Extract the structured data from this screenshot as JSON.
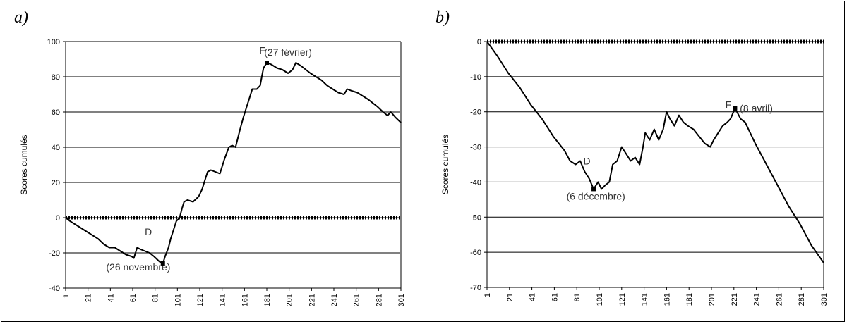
{
  "chart_data": [
    {
      "panel": "a)",
      "type": "line",
      "ylabel": "Scores cumulés",
      "xlabel": "",
      "ylim": [
        -40,
        100
      ],
      "yticks": [
        100,
        80,
        60,
        40,
        20,
        0,
        -20,
        -40
      ],
      "xlim": [
        1,
        301
      ],
      "xticks": [
        1,
        21,
        41,
        61,
        81,
        101,
        121,
        141,
        161,
        181,
        201,
        221,
        241,
        261,
        281,
        301
      ],
      "grid": "horizontal",
      "series": [
        {
          "points": [
            [
              1,
              0
            ],
            [
              5,
              -2
            ],
            [
              10,
              -4
            ],
            [
              15,
              -6
            ],
            [
              20,
              -8
            ],
            [
              25,
              -10
            ],
            [
              30,
              -12
            ],
            [
              35,
              -15
            ],
            [
              40,
              -17
            ],
            [
              45,
              -17
            ],
            [
              50,
              -19
            ],
            [
              55,
              -21
            ],
            [
              60,
              -22
            ],
            [
              62,
              -23
            ],
            [
              65,
              -17
            ],
            [
              68,
              -18
            ],
            [
              72,
              -19
            ],
            [
              76,
              -20
            ],
            [
              80,
              -22
            ],
            [
              85,
              -25
            ],
            [
              88,
              -26
            ],
            [
              90,
              -22
            ],
            [
              93,
              -17
            ],
            [
              95,
              -12
            ],
            [
              98,
              -6
            ],
            [
              100,
              -2
            ],
            [
              103,
              0
            ],
            [
              105,
              5
            ],
            [
              107,
              9
            ],
            [
              110,
              10
            ],
            [
              115,
              9
            ],
            [
              120,
              12
            ],
            [
              123,
              16
            ],
            [
              126,
              22
            ],
            [
              128,
              26
            ],
            [
              131,
              27
            ],
            [
              135,
              26
            ],
            [
              139,
              25
            ],
            [
              143,
              33
            ],
            [
              147,
              40
            ],
            [
              150,
              41
            ],
            [
              153,
              40
            ],
            [
              157,
              50
            ],
            [
              160,
              57
            ],
            [
              163,
              63
            ],
            [
              166,
              69
            ],
            [
              168,
              73
            ],
            [
              172,
              73
            ],
            [
              175,
              75
            ],
            [
              178,
              85
            ],
            [
              181,
              88
            ],
            [
              185,
              87
            ],
            [
              190,
              85
            ],
            [
              195,
              84
            ],
            [
              200,
              82
            ],
            [
              204,
              84
            ],
            [
              207,
              88
            ],
            [
              212,
              86
            ],
            [
              216,
              84
            ],
            [
              220,
              82
            ],
            [
              225,
              80
            ],
            [
              230,
              78
            ],
            [
              235,
              75
            ],
            [
              240,
              73
            ],
            [
              245,
              71
            ],
            [
              250,
              70
            ],
            [
              253,
              73
            ],
            [
              257,
              72
            ],
            [
              262,
              71
            ],
            [
              267,
              69
            ],
            [
              272,
              67
            ],
            [
              276,
              65
            ],
            [
              280,
              63
            ],
            [
              285,
              60
            ],
            [
              289,
              58
            ],
            [
              292,
              60
            ],
            [
              296,
              57
            ],
            [
              301,
              54
            ]
          ]
        },
        {
          "name": "baseline",
          "style": "dotted",
          "points": [
            [
              1,
              0
            ],
            [
              301,
              0
            ]
          ]
        }
      ],
      "annotations": [
        {
          "text": "D",
          "x": 75,
          "y": -10
        },
        {
          "text": "(26 novembre)",
          "x": 66,
          "y": -30
        },
        {
          "text": "F",
          "x": 177,
          "y": 93
        },
        {
          "text": "(27 février)",
          "x": 200,
          "y": 92
        }
      ],
      "marked_points": [
        [
          88,
          -26
        ],
        [
          181,
          88
        ]
      ]
    },
    {
      "panel": "b)",
      "type": "line",
      "ylabel": "Scores cumulés",
      "xlabel": "",
      "ylim": [
        -70,
        0
      ],
      "yticks": [
        0,
        -10,
        -20,
        -30,
        -40,
        -50,
        -60,
        -70
      ],
      "xlim": [
        1,
        301
      ],
      "xticks": [
        1,
        21,
        41,
        61,
        81,
        101,
        121,
        141,
        161,
        181,
        201,
        221,
        241,
        261,
        281,
        301
      ],
      "grid": "horizontal",
      "series": [
        {
          "points": [
            [
              1,
              0
            ],
            [
              10,
              -4
            ],
            [
              20,
              -9
            ],
            [
              30,
              -13
            ],
            [
              40,
              -18
            ],
            [
              50,
              -22
            ],
            [
              60,
              -27
            ],
            [
              65,
              -29
            ],
            [
              70,
              -31
            ],
            [
              75,
              -34
            ],
            [
              80,
              -35
            ],
            [
              84,
              -34
            ],
            [
              88,
              -37
            ],
            [
              92,
              -39
            ],
            [
              96,
              -42
            ],
            [
              100,
              -40
            ],
            [
              103,
              -42
            ],
            [
              106,
              -41
            ],
            [
              110,
              -40
            ],
            [
              113,
              -35
            ],
            [
              117,
              -34
            ],
            [
              121,
              -30
            ],
            [
              125,
              -32
            ],
            [
              129,
              -34
            ],
            [
              133,
              -33
            ],
            [
              137,
              -35
            ],
            [
              140,
              -30
            ],
            [
              142,
              -26
            ],
            [
              146,
              -28
            ],
            [
              150,
              -25
            ],
            [
              154,
              -28
            ],
            [
              158,
              -25
            ],
            [
              161,
              -20
            ],
            [
              164,
              -22
            ],
            [
              168,
              -24
            ],
            [
              172,
              -21
            ],
            [
              176,
              -23
            ],
            [
              180,
              -24
            ],
            [
              185,
              -25
            ],
            [
              190,
              -27
            ],
            [
              195,
              -29
            ],
            [
              200,
              -30
            ],
            [
              203,
              -28
            ],
            [
              207,
              -26
            ],
            [
              211,
              -24
            ],
            [
              215,
              -23
            ],
            [
              218,
              -22
            ],
            [
              222,
              -19
            ],
            [
              227,
              -22
            ],
            [
              231,
              -23
            ],
            [
              240,
              -29
            ],
            [
              250,
              -35
            ],
            [
              260,
              -41
            ],
            [
              270,
              -47
            ],
            [
              280,
              -52
            ],
            [
              290,
              -58
            ],
            [
              301,
              -63
            ]
          ]
        },
        {
          "name": "baseline",
          "style": "dotted",
          "points": [
            [
              1,
              0
            ],
            [
              301,
              0
            ]
          ]
        }
      ],
      "annotations": [
        {
          "text": "D",
          "x": 90,
          "y": -35
        },
        {
          "text": "(6 décembre)",
          "x": 98,
          "y": -45
        },
        {
          "text": "F",
          "x": 216,
          "y": -19
        },
        {
          "text": "(8 avril)",
          "x": 241,
          "y": -20
        }
      ],
      "marked_points": [
        [
          96,
          -42
        ],
        [
          222,
          -19
        ]
      ]
    }
  ]
}
